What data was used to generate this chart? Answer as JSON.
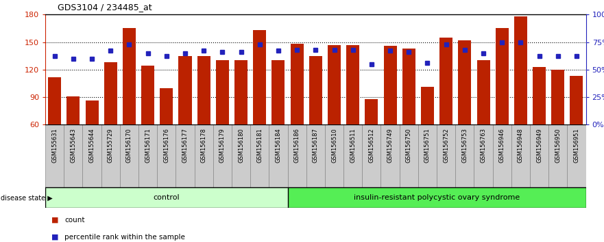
{
  "title": "GDS3104 / 234485_at",
  "samples": [
    "GSM155631",
    "GSM155643",
    "GSM155644",
    "GSM155729",
    "GSM156170",
    "GSM156171",
    "GSM156176",
    "GSM156177",
    "GSM156178",
    "GSM156179",
    "GSM156180",
    "GSM156181",
    "GSM156184",
    "GSM156186",
    "GSM156187",
    "GSM156510",
    "GSM156511",
    "GSM156512",
    "GSM156749",
    "GSM156750",
    "GSM156751",
    "GSM156752",
    "GSM156753",
    "GSM156763",
    "GSM156946",
    "GSM156948",
    "GSM156949",
    "GSM156950",
    "GSM156951"
  ],
  "counts": [
    112,
    91,
    86,
    128,
    165,
    124,
    100,
    135,
    135,
    130,
    130,
    163,
    130,
    148,
    135,
    147,
    147,
    88,
    146,
    143,
    101,
    155,
    152,
    130,
    165,
    178,
    123,
    120,
    113
  ],
  "percentile_ranks": [
    62,
    60,
    60,
    67,
    73,
    65,
    62,
    65,
    67,
    66,
    66,
    73,
    67,
    68,
    68,
    68,
    68,
    55,
    67,
    66,
    56,
    73,
    68,
    65,
    75,
    75,
    62,
    62,
    62
  ],
  "control_count": 13,
  "ylim_left": [
    60,
    180
  ],
  "ylim_right": [
    0,
    100
  ],
  "yticks_left": [
    60,
    90,
    120,
    150,
    180
  ],
  "yticks_right": [
    0,
    25,
    50,
    75,
    100
  ],
  "ytick_labels_right": [
    "0%",
    "25%",
    "50%",
    "75%",
    "100%"
  ],
  "bar_color": "#BB2200",
  "percentile_color": "#2222BB",
  "control_label": "control",
  "disease_label": "insulin-resistant polycystic ovary syndrome",
  "control_bg": "#CCFFCC",
  "disease_bg": "#55EE55",
  "xtick_bg": "#CCCCCC",
  "xtick_border": "#888888",
  "group_label": "disease state",
  "legend_count": "count",
  "legend_percentile": "percentile rank within the sample",
  "background_color": "#FFFFFF"
}
